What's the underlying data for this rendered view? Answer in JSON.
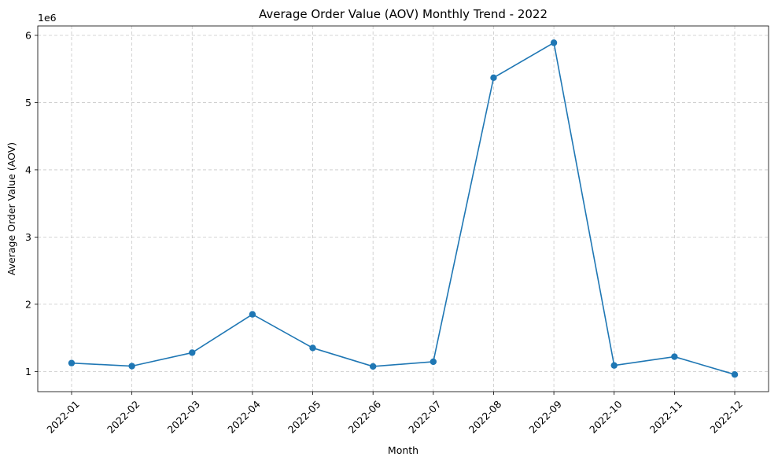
{
  "chart_data": {
    "type": "line",
    "title": "Average Order Value (AOV) Monthly Trend - 2022",
    "xlabel": "Month",
    "ylabel": "Average Order Value (AOV)",
    "y_offset_text": "1e6",
    "categories": [
      "2022-01",
      "2022-02",
      "2022-03",
      "2022-04",
      "2022-05",
      "2022-06",
      "2022-07",
      "2022-08",
      "2022-09",
      "2022-10",
      "2022-11",
      "2022-12"
    ],
    "series": [
      {
        "values": [
          1125000,
          1080000,
          1280000,
          1850000,
          1350000,
          1075000,
          1145000,
          5370000,
          5890000,
          1090000,
          1220000,
          955000
        ],
        "color": "#1f77b4",
        "marker": "circle"
      }
    ],
    "y_ticks": [
      1000000,
      2000000,
      3000000,
      4000000,
      5000000,
      6000000
    ],
    "y_tick_labels": [
      "1",
      "2",
      "3",
      "4",
      "5",
      "6"
    ],
    "ylim": [
      700000,
      6140000
    ],
    "grid": true
  }
}
